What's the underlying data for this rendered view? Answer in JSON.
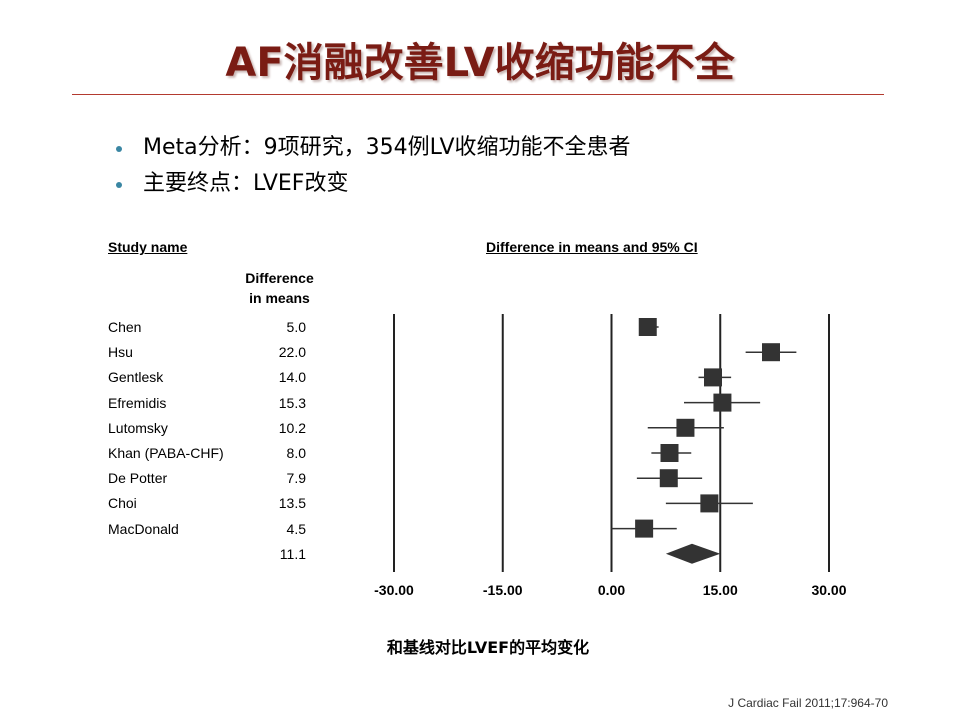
{
  "title": "AF消融改善LV收缩功能不全",
  "bullets": [
    "Meta分析：9项研究，354例LV收缩功能不全患者",
    "主要终点：LVEF改变"
  ],
  "table": {
    "study_header": "Study name",
    "ci_header": "Difference in means and 95%  CI",
    "diff_header_line1": "Difference",
    "diff_header_line2": "in means"
  },
  "caption": "和基线对比LVEF的平均变化",
  "citation": "J Cardiac Fail 2011;17:964-70",
  "colors": {
    "title": "#7a1c14",
    "rule": "#b33a2f",
    "bullet": "#3a86a3",
    "marker": "#333333"
  },
  "chart_data": {
    "type": "forest",
    "title": "",
    "xlabel": "和基线对比LVEF的平均变化",
    "xlim": [
      -30,
      30
    ],
    "xticks": [
      -30,
      -15,
      0,
      15,
      30
    ],
    "xtick_labels": [
      "-30.00",
      "-15.00",
      "0.00",
      "15.00",
      "30.00"
    ],
    "studies": [
      {
        "name": "Chen",
        "label": "5.0",
        "value": 5.0,
        "ci": [
          4.0,
          6.5
        ]
      },
      {
        "name": "Hsu",
        "label": "22.0",
        "value": 22.0,
        "ci": [
          18.5,
          25.5
        ]
      },
      {
        "name": "Gentlesk",
        "label": "14.0",
        "value": 14.0,
        "ci": [
          12.0,
          16.5
        ]
      },
      {
        "name": "Efremidis",
        "label": "15.3",
        "value": 15.3,
        "ci": [
          10.0,
          20.5
        ]
      },
      {
        "name": "Lutomsky",
        "label": "10.2",
        "value": 10.2,
        "ci": [
          5.0,
          15.5
        ]
      },
      {
        "name": "Khan (PABA-CHF)",
        "label": "8.0",
        "value": 8.0,
        "ci": [
          5.5,
          11.0
        ]
      },
      {
        "name": "De Potter",
        "label": "7.9",
        "value": 7.9,
        "ci": [
          3.5,
          12.5
        ]
      },
      {
        "name": "Choi",
        "label": "13.5",
        "value": 13.5,
        "ci": [
          7.5,
          19.5
        ]
      },
      {
        "name": "MacDonald",
        "label": "4.5",
        "value": 4.5,
        "ci": [
          0.0,
          9.0
        ]
      }
    ],
    "pooled": {
      "label": "11.1",
      "value": 11.1,
      "ci": [
        7.5,
        15.0
      ]
    }
  }
}
